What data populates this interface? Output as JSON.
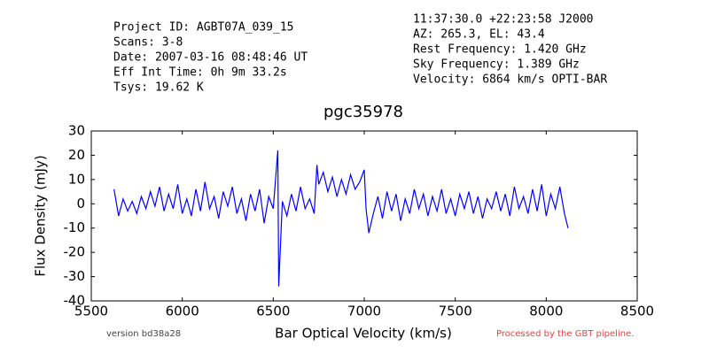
{
  "chart_data": {
    "type": "line",
    "title": "pgc35978",
    "header_left": [
      "Project ID: AGBT07A_039_15",
      "Scans: 3-8",
      "Date: 2007-03-16 08:48:46 UT",
      "Eff Int Time: 0h 9m 33.2s",
      "Tsys: 19.62 K"
    ],
    "header_right": [
      "11:37:30.0 +22:23:58 J2000",
      "AZ: 265.3, EL: 43.4",
      "Rest Frequency:   1.420 GHz",
      "Sky Frequency:    1.389 GHz",
      "Velocity: 6864 km/s OPTI-BAR"
    ],
    "footer_left": "version bd38a28",
    "footer_right": "Processed by the GBT pipeline.",
    "x_label": "Bar Optical Velocity (km/s)",
    "y_label": "Flux Density (mJy)",
    "xlim": [
      5500,
      8500
    ],
    "xticks": [
      5500,
      6000,
      6500,
      7000,
      7500,
      8000,
      8500
    ],
    "ylim": [
      -40,
      30
    ],
    "yticks": [
      -40,
      -30,
      -20,
      -10,
      0,
      10,
      20,
      30
    ],
    "grid": false,
    "series": [
      {
        "name": "pgc35978",
        "color": "#0000ff",
        "x": [
          5625,
          5650,
          5675,
          5700,
          5725,
          5750,
          5775,
          5800,
          5825,
          5850,
          5875,
          5900,
          5925,
          5950,
          5975,
          6000,
          6025,
          6050,
          6075,
          6100,
          6125,
          6150,
          6175,
          6200,
          6225,
          6250,
          6275,
          6300,
          6325,
          6350,
          6375,
          6400,
          6425,
          6450,
          6475,
          6500,
          6525,
          6530,
          6550,
          6575,
          6600,
          6625,
          6650,
          6675,
          6700,
          6725,
          6740,
          6750,
          6775,
          6800,
          6825,
          6850,
          6875,
          6900,
          6925,
          6950,
          6975,
          7000,
          7010,
          7025,
          7050,
          7075,
          7100,
          7125,
          7150,
          7175,
          7200,
          7225,
          7250,
          7275,
          7300,
          7325,
          7350,
          7375,
          7400,
          7425,
          7450,
          7475,
          7500,
          7525,
          7550,
          7575,
          7600,
          7625,
          7650,
          7675,
          7700,
          7725,
          7750,
          7775,
          7800,
          7825,
          7850,
          7875,
          7900,
          7925,
          7950,
          7975,
          8000,
          8025,
          8050,
          8075,
          8100,
          8120
        ],
        "values": [
          6,
          -5,
          2,
          -3,
          1,
          -4,
          3,
          -2,
          5,
          -1,
          7,
          -3,
          4,
          -2,
          8,
          -4,
          2,
          -5,
          6,
          -3,
          9,
          -2,
          3,
          -6,
          5,
          -1,
          7,
          -4,
          2,
          -7,
          4,
          -3,
          6,
          -8,
          3,
          -2,
          22,
          -34,
          1,
          -5,
          4,
          -3,
          7,
          -2,
          2,
          -4,
          16,
          8,
          13,
          5,
          11,
          3,
          10,
          4,
          12,
          6,
          9,
          14,
          -2,
          -12,
          -4,
          3,
          -6,
          5,
          -3,
          4,
          -7,
          2,
          -4,
          6,
          -2,
          4,
          -5,
          3,
          -3,
          6,
          -4,
          2,
          -5,
          4,
          -2,
          5,
          -4,
          3,
          -6,
          2,
          -2,
          5,
          -3,
          4,
          -5,
          7,
          -2,
          3,
          -4,
          6,
          -3,
          8,
          -5,
          4,
          -2,
          7,
          -4,
          -10
        ]
      }
    ]
  }
}
